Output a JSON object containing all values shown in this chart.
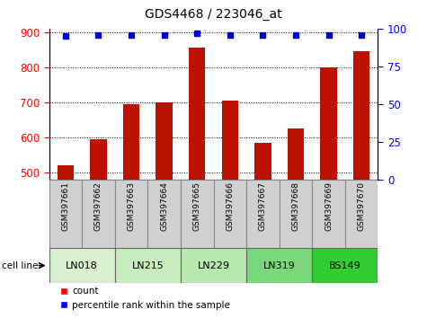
{
  "title": "GDS4468 / 223046_at",
  "samples": [
    "GSM397661",
    "GSM397662",
    "GSM397663",
    "GSM397664",
    "GSM397665",
    "GSM397666",
    "GSM397667",
    "GSM397668",
    "GSM397669",
    "GSM397670"
  ],
  "counts": [
    520,
    595,
    695,
    700,
    855,
    705,
    585,
    625,
    800,
    845
  ],
  "percentile_ranks": [
    95,
    96,
    96,
    96,
    97,
    96,
    96,
    96,
    96,
    96
  ],
  "cell_lines": [
    {
      "name": "LN018",
      "start": 0,
      "end": 2
    },
    {
      "name": "LN215",
      "start": 2,
      "end": 4
    },
    {
      "name": "LN229",
      "start": 4,
      "end": 6
    },
    {
      "name": "LN319",
      "start": 6,
      "end": 8
    },
    {
      "name": "BS149",
      "start": 8,
      "end": 10
    }
  ],
  "cell_line_colors": [
    "#d8f0d0",
    "#c8ecc0",
    "#b8e8b0",
    "#7ad87a",
    "#33cc33"
  ],
  "ylim_left": [
    480,
    910
  ],
  "ylim_right": [
    0,
    100
  ],
  "yticks_left": [
    500,
    600,
    700,
    800,
    900
  ],
  "yticks_right": [
    0,
    25,
    50,
    75,
    100
  ],
  "bar_color": "#bb1100",
  "dot_color": "#0000cc",
  "bar_width": 0.5,
  "label_box_color": "#d0d0d0",
  "label_box_edge": "#888888"
}
